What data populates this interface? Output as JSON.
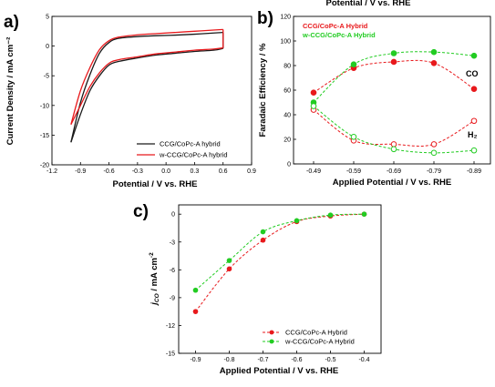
{
  "chart_data": [
    {
      "panel_label": "a)",
      "type": "line",
      "xlabel": "Potential / V vs. RHE",
      "ylabel": "Current Density / mA cm⁻²",
      "xlim": [
        -1.2,
        0.9
      ],
      "ylim": [
        -20,
        5
      ],
      "xticks": [
        "-1.2",
        "-0.9",
        "-0.6",
        "-0.3",
        "0.0",
        "0.3",
        "0.6",
        "0.9"
      ],
      "yticks": [
        "5",
        "0",
        "-5",
        "-10",
        "-15",
        "-20"
      ],
      "legend_position": "bottom-right",
      "series": [
        {
          "name": "CCG/CoPc-A hybrid",
          "color": "#1a1a1a",
          "upper_x": [
            -1.0,
            -0.9,
            -0.8,
            -0.7,
            -0.6,
            -0.5,
            -0.3,
            -0.1,
            0.1,
            0.3,
            0.5,
            0.6
          ],
          "upper_y": [
            -16.2,
            -9.5,
            -4.8,
            -1.2,
            0.6,
            1.3,
            1.6,
            1.75,
            1.85,
            2.0,
            2.2,
            2.3
          ],
          "lower_x": [
            0.6,
            0.5,
            0.3,
            0.1,
            -0.1,
            -0.3,
            -0.5,
            -0.6,
            -0.7,
            -0.8,
            -0.9,
            -1.0
          ],
          "lower_y": [
            -0.4,
            -0.7,
            -0.9,
            -1.2,
            -1.5,
            -2.0,
            -2.6,
            -3.2,
            -5.0,
            -7.5,
            -11.5,
            -16.2
          ]
        },
        {
          "name": "w-CCG/CoPc-A hybrid",
          "color": "#e8191c",
          "upper_x": [
            -1.0,
            -0.9,
            -0.8,
            -0.7,
            -0.6,
            -0.5,
            -0.3,
            -0.1,
            0.1,
            0.3,
            0.5,
            0.6
          ],
          "upper_y": [
            -13.2,
            -7.5,
            -3.6,
            -0.6,
            0.9,
            1.5,
            1.9,
            2.1,
            2.3,
            2.5,
            2.7,
            2.8
          ],
          "lower_x": [
            0.6,
            0.5,
            0.3,
            0.1,
            -0.1,
            -0.3,
            -0.5,
            -0.6,
            -0.7,
            -0.8,
            -0.9,
            -1.0
          ],
          "lower_y": [
            -0.3,
            -0.5,
            -0.7,
            -1.0,
            -1.3,
            -1.8,
            -2.3,
            -2.9,
            -4.5,
            -6.8,
            -10.0,
            -13.2
          ]
        }
      ]
    },
    {
      "panel_label": "b)",
      "type": "scatter",
      "header_text": "Potential / V vs. RHE",
      "xlabel": "Applied Potential / V vs. RHE",
      "ylabel": "Faradaic Efficiency / %",
      "categories": [
        "-0.49",
        "-0.59",
        "-0.69",
        "-0.79",
        "-0.89"
      ],
      "ylim": [
        0,
        120
      ],
      "yticks": [
        "0",
        "20",
        "40",
        "60",
        "80",
        "100",
        "120"
      ],
      "legend_position": "top-left",
      "annotations": [
        "CO",
        "H₂"
      ],
      "series": [
        {
          "name": "CCG/CoPc-A Hybrid",
          "product": "CO",
          "color": "#e8191c",
          "filled": true,
          "values": [
            58,
            78,
            83,
            82,
            61
          ]
        },
        {
          "name": "w-CCG/CoPc-A Hybrid",
          "product": "CO",
          "color": "#22cc22",
          "filled": true,
          "values": [
            50,
            81,
            90,
            91,
            88
          ]
        },
        {
          "name": "CCG/CoPc-A Hybrid",
          "product": "H2",
          "color": "#e8191c",
          "filled": false,
          "values": [
            44,
            19,
            16,
            16,
            35
          ]
        },
        {
          "name": "w-CCG/CoPc-A Hybrid",
          "product": "H2",
          "color": "#22cc22",
          "filled": false,
          "values": [
            47,
            22,
            12,
            9,
            11
          ]
        }
      ]
    },
    {
      "panel_label": "c)",
      "type": "line",
      "xlabel": "Applied Potential / V vs. RHE",
      "ylabel": "j_CO / mA cm⁻²",
      "ylabel_main": "j",
      "ylabel_sub": "CO",
      "ylabel_rest": " / mA cm",
      "ylabel_sup": "-2",
      "xlim": [
        -0.95,
        -0.35
      ],
      "ylim": [
        -15,
        1
      ],
      "xticks": [
        "-0.9",
        "-0.8",
        "-0.7",
        "-0.6",
        "-0.5",
        "-0.4"
      ],
      "yticks": [
        "0",
        "-3",
        "-6",
        "-9",
        "-12",
        "-15"
      ],
      "legend_position": "bottom-right",
      "series": [
        {
          "name": "CCG/CoPc-A Hybrid",
          "color": "#e8191c",
          "x": [
            -0.9,
            -0.8,
            -0.7,
            -0.6,
            -0.5,
            -0.4
          ],
          "y": [
            -10.5,
            -5.9,
            -2.8,
            -0.8,
            -0.2,
            0.0
          ]
        },
        {
          "name": "w-CCG/CoPc-A Hybrid",
          "color": "#22cc22",
          "x": [
            -0.9,
            -0.8,
            -0.7,
            -0.6,
            -0.5,
            -0.4
          ],
          "y": [
            -8.2,
            -5.0,
            -1.9,
            -0.7,
            -0.1,
            0.0
          ]
        }
      ]
    }
  ]
}
